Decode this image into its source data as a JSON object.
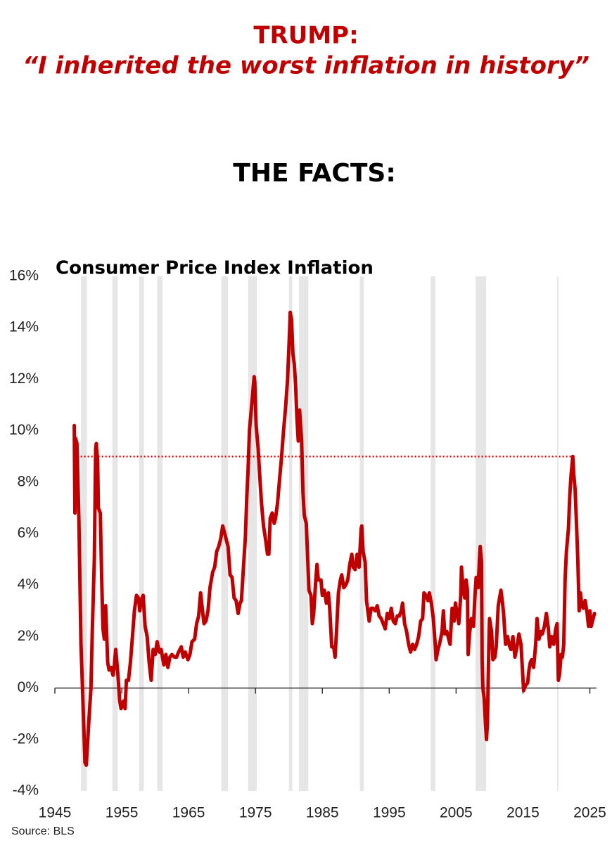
{
  "header": {
    "title": "TRUMP:",
    "quote": "“I inherited the worst inflation in history”"
  },
  "subheading": "THE FACTS:",
  "chart_data": {
    "type": "line",
    "title": "Consumer Price Index Inflation",
    "source": "Source: BLS",
    "xlim": [
      1945,
      2026
    ],
    "ylim": [
      -4,
      16
    ],
    "xticks": [
      1945,
      1955,
      1965,
      1975,
      1985,
      1995,
      2005,
      2015,
      2025
    ],
    "yticks": [
      {
        "value": -4,
        "label": "-4%"
      },
      {
        "value": -2,
        "label": "-2%"
      },
      {
        "value": 0,
        "label": "0%"
      },
      {
        "value": 2,
        "label": "2%"
      },
      {
        "value": 4,
        "label": "4%"
      },
      {
        "value": 6,
        "label": "6%"
      },
      {
        "value": 8,
        "label": "8%"
      },
      {
        "value": 10,
        "label": "10%"
      },
      {
        "value": 12,
        "label": "12%"
      },
      {
        "value": 14,
        "label": "14%"
      },
      {
        "value": 16,
        "label": "16%"
      }
    ],
    "recession_color": "#e6e6e6",
    "recessions": [
      [
        1948.9,
        1949.8
      ],
      [
        1953.6,
        1954.4
      ],
      [
        1957.6,
        1958.3
      ],
      [
        1960.3,
        1961.1
      ],
      [
        1969.9,
        1970.9
      ],
      [
        1973.9,
        1975.2
      ],
      [
        1980.0,
        1980.5
      ],
      [
        1981.5,
        1982.9
      ],
      [
        1990.6,
        1991.2
      ],
      [
        2001.2,
        2001.9
      ],
      [
        2007.9,
        2009.5
      ],
      [
        2020.1,
        2020.3
      ]
    ],
    "reference_line": {
      "y": 9,
      "x": [
        1947.8,
        2022.5
      ],
      "color": "#e00000"
    },
    "series": [
      {
        "color": "#c00000",
        "x": [
          1947.9,
          1948.0,
          1948.1,
          1948.3,
          1948.6,
          1948.9,
          1949.0,
          1949.2,
          1949.5,
          1949.7,
          1949.9,
          1950.1,
          1950.4,
          1950.6,
          1950.9,
          1951.1,
          1951.2,
          1951.4,
          1951.5,
          1951.8,
          1952.0,
          1952.2,
          1952.4,
          1952.6,
          1952.9,
          1953.1,
          1953.4,
          1953.7,
          1953.9,
          1954.1,
          1954.4,
          1954.7,
          1954.9,
          1955.1,
          1955.3,
          1955.5,
          1955.7,
          1956.0,
          1956.3,
          1956.6,
          1956.9,
          1957.2,
          1957.5,
          1957.7,
          1957.9,
          1958.2,
          1958.5,
          1958.8,
          1959.1,
          1959.4,
          1959.7,
          1960.0,
          1960.3,
          1960.6,
          1960.9,
          1961.1,
          1961.3,
          1961.6,
          1961.9,
          1962.2,
          1962.5,
          1962.9,
          1963.2,
          1963.5,
          1963.9,
          1964.2,
          1964.5,
          1964.9,
          1965.2,
          1965.5,
          1965.9,
          1966.2,
          1966.5,
          1966.8,
          1967.0,
          1967.3,
          1967.6,
          1967.9,
          1968.2,
          1968.6,
          1968.9,
          1969.2,
          1969.5,
          1969.8,
          1970.1,
          1970.4,
          1970.7,
          1970.9,
          1971.2,
          1971.5,
          1971.8,
          1972.1,
          1972.4,
          1972.7,
          1972.9,
          1973.2,
          1973.5,
          1973.7,
          1973.9,
          1974.1,
          1974.4,
          1974.6,
          1974.8,
          1974.9,
          1975.1,
          1975.4,
          1975.6,
          1975.9,
          1976.2,
          1976.5,
          1976.8,
          1977.0,
          1977.2,
          1977.5,
          1977.8,
          1978.0,
          1978.3,
          1978.6,
          1978.9,
          1979.2,
          1979.5,
          1979.8,
          1980.1,
          1980.2,
          1980.4,
          1980.6,
          1980.8,
          1981.0,
          1981.2,
          1981.4,
          1981.6,
          1981.9,
          1982.1,
          1982.3,
          1982.6,
          1982.8,
          1983.0,
          1983.3,
          1983.5,
          1983.7,
          1984.0,
          1984.2,
          1984.4,
          1984.8,
          1985.0,
          1985.3,
          1985.6,
          1985.9,
          1986.1,
          1986.4,
          1986.7,
          1986.9,
          1987.1,
          1987.4,
          1987.7,
          1987.9,
          1988.2,
          1988.5,
          1988.8,
          1989.1,
          1989.4,
          1989.6,
          1989.9,
          1990.2,
          1990.5,
          1990.8,
          1990.9,
          1991.1,
          1991.4,
          1991.6,
          1991.8,
          1992.0,
          1992.3,
          1992.6,
          1992.9,
          1993.2,
          1993.5,
          1993.8,
          1994.1,
          1994.4,
          1994.7,
          1995.0,
          1995.3,
          1995.6,
          1995.9,
          1996.2,
          1996.5,
          1996.8,
          1997.0,
          1997.3,
          1997.6,
          1997.9,
          1998.2,
          1998.5,
          1998.8,
          1999.1,
          1999.4,
          1999.7,
          2000.0,
          2000.2,
          2000.5,
          2000.8,
          2001.0,
          2001.3,
          2001.6,
          2001.9,
          2002.0,
          2002.3,
          2002.6,
          2002.9,
          2003.1,
          2003.3,
          2003.6,
          2003.9,
          2004.1,
          2004.4,
          2004.7,
          2004.9,
          2005.1,
          2005.4,
          2005.7,
          2005.8,
          2006.0,
          2006.3,
          2006.5,
          2006.7,
          2006.8,
          2007.0,
          2007.3,
          2007.6,
          2007.8,
          2008.0,
          2008.3,
          2008.5,
          2008.6,
          2008.8,
          2008.9,
          2009.0,
          2009.2,
          2009.4,
          2009.55,
          2009.7,
          2009.9,
          2010.0,
          2010.3,
          2010.5,
          2010.8,
          2011.0,
          2011.3,
          2011.7,
          2011.9,
          2012.1,
          2012.4,
          2012.7,
          2012.9,
          2013.2,
          2013.5,
          2013.8,
          2014.1,
          2014.4,
          2014.7,
          2014.9,
          2015.1,
          2015.4,
          2015.7,
          2015.9,
          2016.1,
          2016.3,
          2016.6,
          2016.9,
          2017.1,
          2017.4,
          2017.7,
          2017.9,
          2018.2,
          2018.5,
          2018.8,
          2019.0,
          2019.3,
          2019.6,
          2019.9,
          2020.1,
          2020.3,
          2020.5,
          2020.7,
          2020.9,
          2021.1,
          2021.3,
          2021.5,
          2021.8,
          2022.0,
          2022.2,
          2022.45,
          2022.6,
          2022.8,
          2023.0,
          2023.2,
          2023.4,
          2023.6,
          2023.8,
          2024.0,
          2024.3,
          2024.6,
          2024.8,
          2025.0,
          2025.2,
          2025.5,
          2025.7
        ],
        "values": [
          10.2,
          6.8,
          9.7,
          9.5,
          6.5,
          1.7,
          1.0,
          -0.5,
          -2.9,
          -3.0,
          -2.1,
          -1.2,
          0.0,
          2.2,
          5.0,
          9.3,
          9.5,
          8.8,
          7.0,
          6.8,
          4.3,
          2.3,
          1.9,
          3.2,
          1.0,
          0.7,
          0.8,
          0.5,
          0.9,
          1.5,
          0.6,
          -0.5,
          -0.8,
          -0.6,
          -0.5,
          -0.8,
          0.3,
          0.3,
          1.0,
          2.0,
          3.0,
          3.6,
          3.5,
          3.0,
          3.4,
          3.6,
          2.4,
          2.0,
          1.0,
          0.3,
          1.5,
          1.3,
          1.8,
          1.4,
          1.5,
          1.2,
          0.9,
          1.3,
          0.8,
          1.2,
          1.3,
          1.2,
          1.2,
          1.4,
          1.6,
          1.2,
          1.4,
          1.1,
          1.3,
          1.8,
          1.9,
          2.5,
          2.8,
          3.7,
          3.2,
          2.5,
          2.6,
          3.0,
          3.9,
          4.5,
          4.7,
          5.3,
          5.5,
          5.8,
          6.3,
          6.0,
          5.7,
          5.5,
          4.4,
          4.3,
          3.5,
          3.4,
          2.9,
          3.3,
          3.4,
          4.7,
          5.9,
          7.4,
          8.5,
          10.0,
          10.9,
          11.5,
          12.1,
          11.9,
          10.2,
          9.3,
          8.4,
          7.2,
          6.3,
          5.8,
          5.2,
          5.2,
          6.6,
          6.8,
          6.4,
          6.6,
          7.2,
          8.1,
          9.0,
          10.0,
          10.9,
          12.0,
          13.9,
          14.6,
          14.3,
          13.0,
          12.6,
          11.8,
          10.5,
          9.6,
          10.8,
          9.6,
          7.6,
          6.7,
          6.4,
          5.1,
          3.8,
          3.6,
          2.5,
          2.9,
          4.1,
          4.8,
          4.2,
          4.2,
          3.6,
          3.8,
          3.3,
          3.7,
          3.1,
          1.6,
          1.6,
          1.2,
          2.1,
          3.7,
          4.2,
          4.4,
          3.9,
          4.0,
          4.2,
          4.8,
          5.2,
          4.7,
          4.6,
          5.2,
          4.7,
          6.2,
          6.3,
          5.3,
          4.9,
          3.4,
          3.0,
          2.6,
          3.1,
          3.1,
          3.0,
          3.2,
          2.8,
          2.7,
          2.5,
          2.3,
          2.9,
          2.7,
          3.1,
          2.6,
          2.5,
          2.8,
          2.8,
          3.0,
          3.3,
          2.5,
          2.2,
          1.7,
          1.4,
          1.7,
          1.5,
          1.7,
          2.0,
          2.6,
          2.7,
          3.7,
          3.6,
          3.4,
          3.7,
          3.3,
          2.7,
          1.6,
          1.1,
          1.5,
          1.8,
          2.2,
          3.0,
          2.1,
          2.2,
          1.9,
          1.7,
          3.1,
          2.6,
          3.3,
          3.0,
          2.5,
          3.6,
          4.7,
          4.0,
          3.5,
          4.2,
          3.8,
          1.3,
          2.1,
          2.7,
          2.4,
          3.5,
          4.3,
          3.9,
          5.0,
          5.5,
          4.9,
          1.1,
          0.0,
          -0.4,
          -1.4,
          -2.0,
          -1.3,
          1.8,
          2.7,
          2.2,
          1.1,
          1.2,
          1.6,
          3.2,
          3.8,
          3.4,
          2.9,
          1.7,
          2.0,
          1.7,
          1.5,
          2.0,
          1.2,
          1.6,
          2.1,
          1.7,
          0.8,
          -0.1,
          0.1,
          0.2,
          0.7,
          1.0,
          1.1,
          0.8,
          1.7,
          2.7,
          1.9,
          2.2,
          2.1,
          2.4,
          2.9,
          2.3,
          1.6,
          2.0,
          1.7,
          2.3,
          2.5,
          0.3,
          0.6,
          1.3,
          1.2,
          1.7,
          4.2,
          5.3,
          6.2,
          7.5,
          8.3,
          9.0,
          8.3,
          7.7,
          6.4,
          5.0,
          3.0,
          3.7,
          3.2,
          3.1,
          3.4,
          2.9,
          2.4,
          3.0,
          2.4,
          2.7,
          2.9
        ]
      }
    ]
  }
}
